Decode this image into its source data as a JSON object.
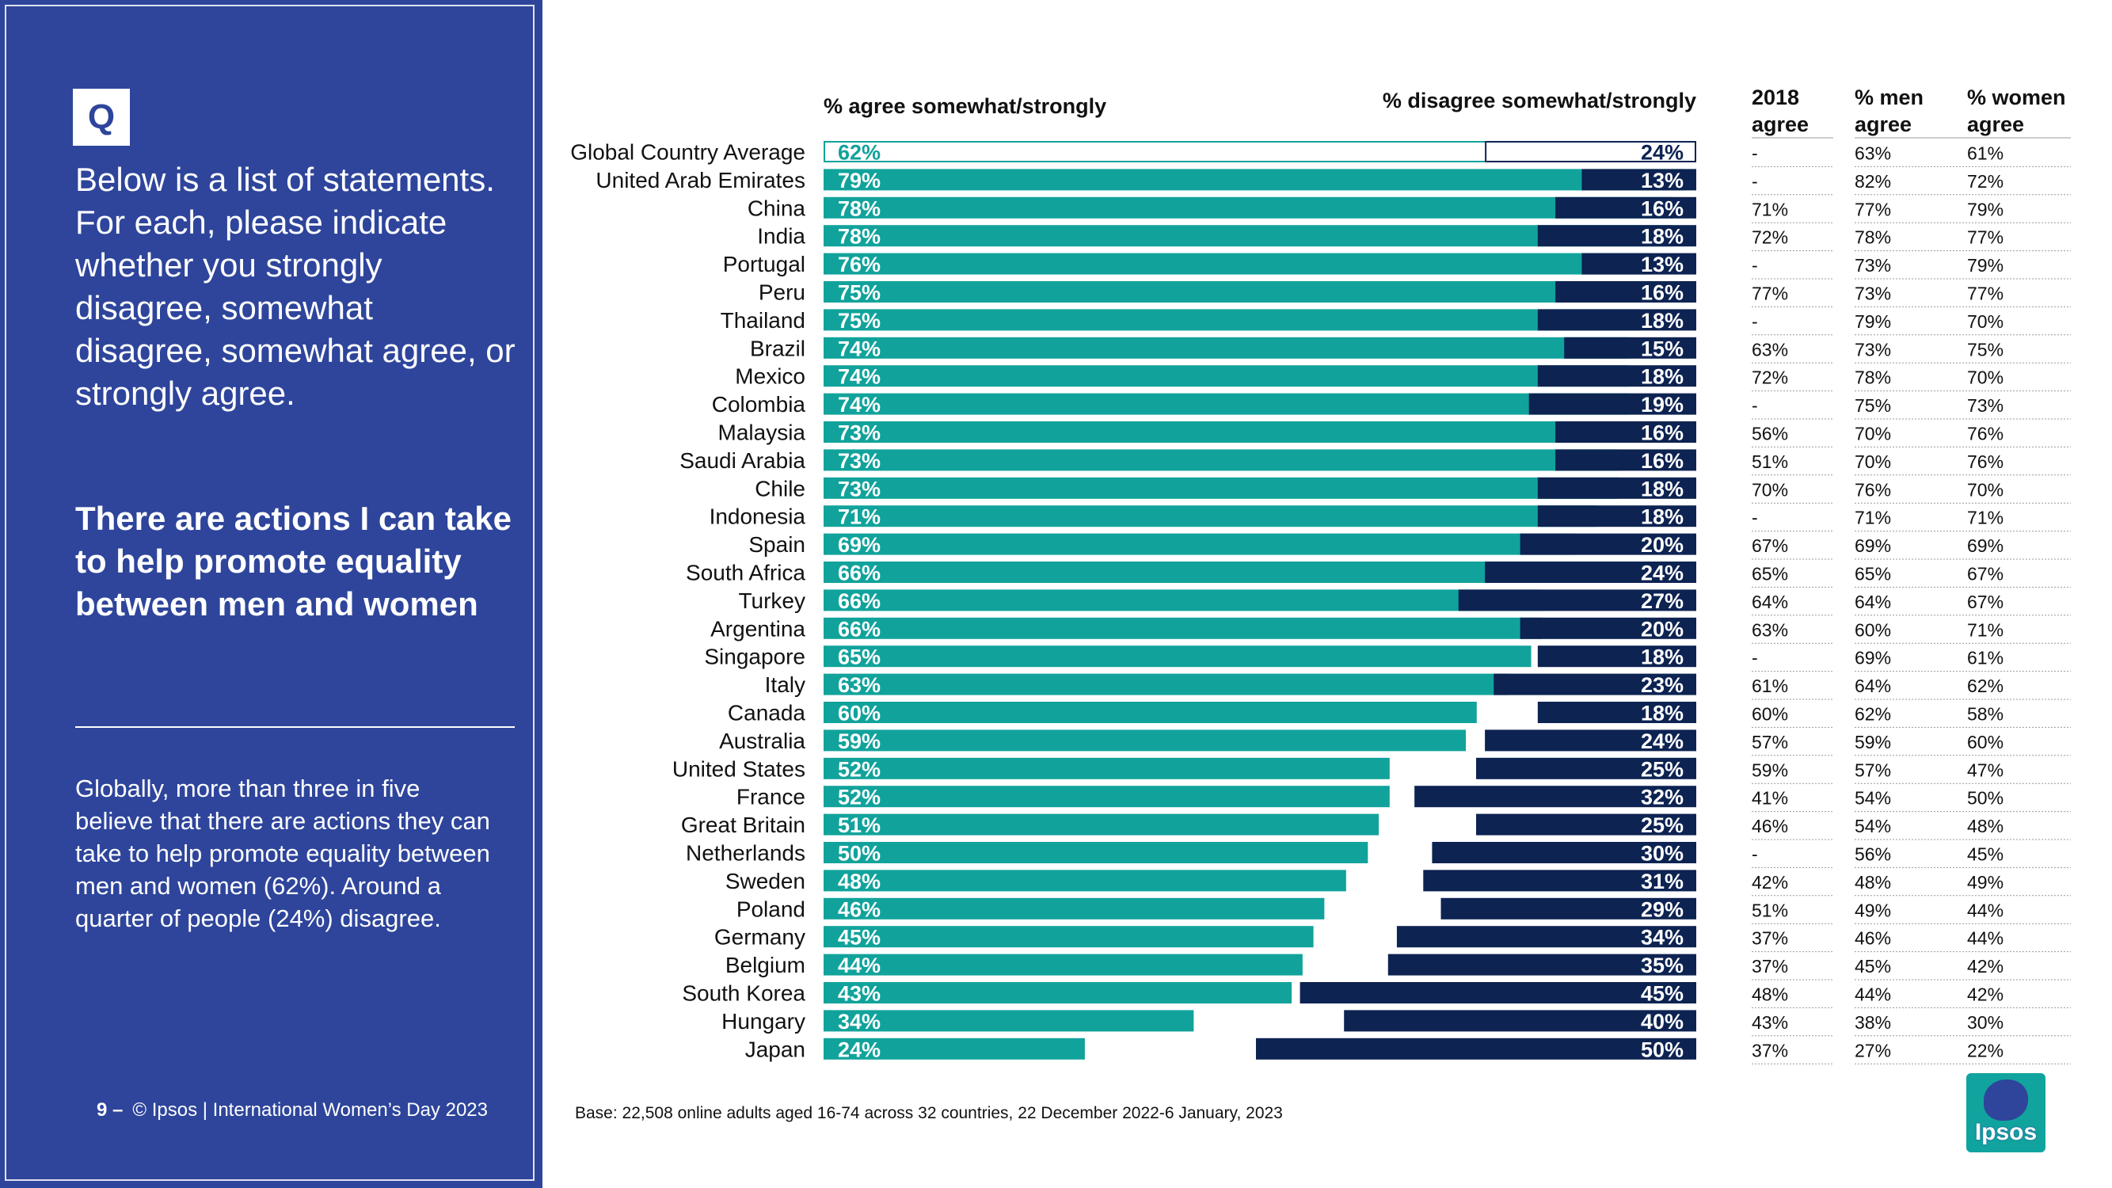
{
  "left": {
    "q_badge": "Q",
    "question": "Below is a list of statements. For each, please indicate whether you strongly disagree, somewhat disagree, somewhat agree, or strongly agree.",
    "statement": "There are actions I can take to help promote equality between men and women",
    "summary": "Globally, more than three in five believe that there are actions they can take to help promote equality between men and women (62%). Around a quarter of people (24%) disagree.",
    "page_number": "9 –",
    "footer": "© Ipsos | International Women’s Day 2023"
  },
  "base_note": "Base: 22,508 online adults aged 16-74 across 32 countries, 22 December 2022-6 January, 2023",
  "logo_text": "Ipsos",
  "colors": {
    "panel": "#2e459b",
    "agree": "#11a39b",
    "disagree": "#0d2352",
    "average_outline_agree": "#11a39b",
    "average_outline_disagree": "#0d2352"
  },
  "chart_data": {
    "type": "bar",
    "title": "There are actions I can take to help promote equality between men and women",
    "series": [
      {
        "name": "% agree somewhat/strongly",
        "values": [
          62,
          79,
          78,
          78,
          76,
          75,
          75,
          74,
          74,
          74,
          73,
          73,
          73,
          71,
          69,
          66,
          66,
          66,
          65,
          63,
          60,
          59,
          52,
          52,
          51,
          50,
          48,
          46,
          45,
          44,
          43,
          34,
          24
        ]
      },
      {
        "name": "% disagree somewhat/strongly",
        "values": [
          24,
          13,
          16,
          18,
          13,
          16,
          18,
          15,
          18,
          19,
          16,
          16,
          18,
          18,
          20,
          24,
          27,
          20,
          18,
          23,
          18,
          24,
          25,
          32,
          25,
          30,
          31,
          29,
          34,
          35,
          45,
          40,
          50
        ]
      }
    ],
    "categories": [
      "Global Country Average",
      "United Arab Emirates",
      "China",
      "India",
      "Portugal",
      "Peru",
      "Thailand",
      "Brazil",
      "Mexico",
      "Colombia",
      "Malaysia",
      "Saudi Arabia",
      "Chile",
      "Indonesia",
      "Spain",
      "South Africa",
      "Turkey",
      "Argentina",
      "Singapore",
      "Italy",
      "Canada",
      "Australia",
      "United States",
      "France",
      "Great Britain",
      "Netherlands",
      "Sweden",
      "Poland",
      "Germany",
      "Belgium",
      "South Korea",
      "Hungary",
      "Japan"
    ],
    "ylim": [
      0,
      100
    ],
    "table_columns": [
      {
        "header": [
          "2018",
          "agree"
        ],
        "values": [
          "-",
          "-",
          "71%",
          "72%",
          "-",
          "77%",
          "-",
          "63%",
          "72%",
          "-",
          "56%",
          "51%",
          "70%",
          "-",
          "67%",
          "65%",
          "64%",
          "63%",
          "-",
          "61%",
          "60%",
          "57%",
          "59%",
          "41%",
          "46%",
          "-",
          "42%",
          "51%",
          "37%",
          "37%",
          "48%",
          "43%",
          "37%"
        ]
      },
      {
        "header": [
          "% men",
          "agree"
        ],
        "values": [
          "63%",
          "82%",
          "77%",
          "78%",
          "73%",
          "73%",
          "79%",
          "73%",
          "78%",
          "75%",
          "70%",
          "70%",
          "76%",
          "71%",
          "69%",
          "65%",
          "64%",
          "60%",
          "69%",
          "64%",
          "62%",
          "59%",
          "57%",
          "54%",
          "54%",
          "56%",
          "48%",
          "49%",
          "46%",
          "45%",
          "44%",
          "38%",
          "27%"
        ]
      },
      {
        "header": [
          "% women",
          "agree"
        ],
        "values": [
          "61%",
          "72%",
          "79%",
          "77%",
          "79%",
          "77%",
          "70%",
          "75%",
          "70%",
          "73%",
          "76%",
          "76%",
          "70%",
          "71%",
          "69%",
          "67%",
          "67%",
          "71%",
          "61%",
          "62%",
          "58%",
          "60%",
          "47%",
          "50%",
          "48%",
          "45%",
          "49%",
          "44%",
          "44%",
          "42%",
          "42%",
          "30%",
          "22%"
        ]
      }
    ]
  }
}
